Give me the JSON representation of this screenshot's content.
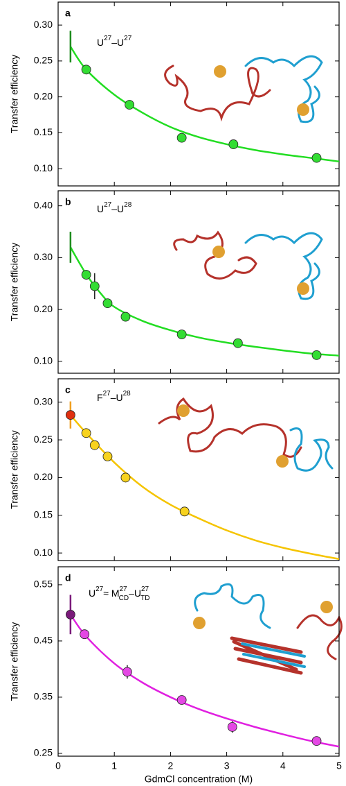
{
  "chart_data": [
    {
      "type": "scatter",
      "panel_label": "a",
      "annotation": [
        "U",
        "27",
        "–U",
        "27"
      ],
      "ylabel": "Transfer efficiency",
      "xlim": [
        0,
        5
      ],
      "xticks": [
        0,
        1,
        2,
        3,
        4,
        5
      ],
      "ylim": [
        0.076,
        0.332
      ],
      "yticks": [
        {
          "value": 0.1,
          "label": "0.10"
        },
        0.15,
        {
          "value": 0.2,
          "label": "0.20"
        },
        0.25,
        {
          "value": 0.3,
          "label": "0.30"
        }
      ],
      "color": "#22dd22",
      "marker_color": "#33dd33",
      "extrapolated": {
        "x": 0.22,
        "value": 0.27,
        "error": 0.022,
        "color": "#1e8c1e",
        "marker": false
      },
      "points": {
        "x": [
          0.5,
          1.27,
          2.2,
          3.12,
          4.6
        ],
        "values": [
          0.238,
          0.189,
          0.143,
          0.134,
          0.115
        ],
        "errors": [
          null,
          null,
          null,
          null,
          null
        ]
      },
      "fit": {
        "x": [
          0.22,
          0.5,
          1,
          1.5,
          2,
          2.5,
          3,
          3.5,
          4,
          4.5,
          5
        ],
        "values": [
          0.27,
          0.238,
          0.203,
          0.178,
          0.158,
          0.144,
          0.134,
          0.126,
          0.12,
          0.115,
          0.11
        ]
      }
    },
    {
      "type": "scatter",
      "panel_label": "b",
      "annotation": [
        "U",
        "27",
        "–U",
        "28"
      ],
      "ylabel": "Transfer efficiency",
      "xlim": [
        0,
        5
      ],
      "xticks": [
        0,
        1,
        2,
        3,
        4,
        5
      ],
      "ylim": [
        0.077,
        0.429
      ],
      "yticks": [
        {
          "value": 0.1,
          "label": "0.10"
        },
        {
          "value": 0.2,
          "label": "0.20"
        },
        {
          "value": 0.3,
          "label": "0.30"
        },
        {
          "value": 0.4,
          "label": "0.40"
        }
      ],
      "color": "#22dd22",
      "marker_color": "#33dd33",
      "extrapolated": {
        "x": 0.22,
        "value": 0.32,
        "error": 0.03,
        "color": "#1e8c1e",
        "marker": false
      },
      "points": {
        "x": [
          0.5,
          0.65,
          0.88,
          1.2,
          2.2,
          3.2,
          4.6
        ],
        "values": [
          0.267,
          0.245,
          0.212,
          0.186,
          0.152,
          0.135,
          0.112
        ],
        "errors": [
          null,
          0.025,
          null,
          null,
          null,
          null,
          null
        ]
      },
      "fit": {
        "x": [
          0.22,
          0.5,
          0.75,
          1,
          1.5,
          2,
          2.5,
          3,
          3.5,
          4,
          4.5,
          5
        ],
        "values": [
          0.32,
          0.268,
          0.232,
          0.205,
          0.178,
          0.16,
          0.146,
          0.136,
          0.128,
          0.121,
          0.115,
          0.111
        ]
      }
    },
    {
      "type": "scatter",
      "panel_label": "c",
      "annotation": [
        "F",
        "27",
        "–U",
        "28"
      ],
      "ylabel": "Transfer efficiency",
      "xlim": [
        0,
        5
      ],
      "xticks": [
        0,
        1,
        2,
        3,
        4,
        5
      ],
      "ylim": [
        0.09,
        0.331
      ],
      "yticks": [
        {
          "value": 0.1,
          "label": "0.10"
        },
        0.15,
        {
          "value": 0.2,
          "label": "0.20"
        },
        0.25,
        {
          "value": 0.3,
          "label": "0.30"
        }
      ],
      "color": "#f5c400",
      "marker_color": "#f7d21e",
      "extrapolated": {
        "x": 0.22,
        "value": 0.283,
        "error": 0.018,
        "color": "#e03010",
        "bar_color": "#f0a020",
        "marker": true
      },
      "points": {
        "x": [
          0.5,
          0.65,
          0.88,
          1.2,
          2.25
        ],
        "values": [
          0.259,
          0.243,
          0.228,
          0.2,
          0.155
        ],
        "errors": [
          null,
          null,
          null,
          null,
          null
        ]
      },
      "fit": {
        "x": [
          0.22,
          0.5,
          1,
          1.5,
          2,
          2.5,
          3,
          3.5,
          4,
          4.5,
          5
        ],
        "values": [
          0.283,
          0.259,
          0.22,
          0.188,
          0.164,
          0.146,
          0.13,
          0.117,
          0.107,
          0.099,
          0.092
        ]
      }
    },
    {
      "type": "scatter",
      "panel_label": "d",
      "annotation": [
        "U",
        "27",
        "≈ M",
        "27",
        "CD",
        "–U",
        "27",
        "TD"
      ],
      "ylabel": "Transfer efficiency",
      "xlabel": "GdmCl concentration (M)",
      "xlim": [
        0,
        5
      ],
      "xticks": [
        0,
        1,
        2,
        3,
        4,
        5
      ],
      "ylim": [
        0.245,
        0.582
      ],
      "yticks": [
        0.25,
        0.35,
        0.45,
        0.55
      ],
      "color": "#e020e0",
      "marker_color": "#e448e4",
      "extrapolated": {
        "x": 0.22,
        "value": 0.497,
        "error": 0.035,
        "color": "#7a1a7a",
        "marker": true
      },
      "points": {
        "x": [
          0.47,
          1.23,
          2.2,
          3.1,
          4.6
        ],
        "values": [
          0.462,
          0.395,
          0.345,
          0.297,
          0.272
        ],
        "errors": [
          null,
          0.012,
          null,
          0.01,
          null
        ]
      },
      "fit": {
        "x": [
          0.22,
          0.5,
          1,
          1.5,
          2,
          2.5,
          3,
          3.5,
          4,
          4.5,
          5
        ],
        "values": [
          0.497,
          0.458,
          0.41,
          0.376,
          0.35,
          0.329,
          0.312,
          0.297,
          0.284,
          0.272,
          0.262
        ]
      }
    }
  ]
}
